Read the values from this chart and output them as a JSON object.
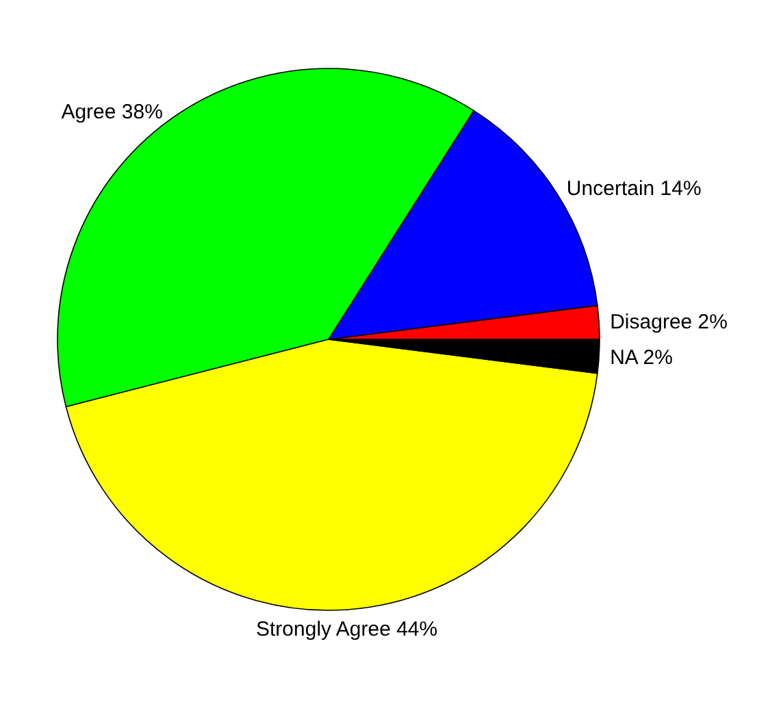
{
  "chart_data": {
    "type": "pie",
    "categories": [
      "Disagree",
      "Uncertain",
      "Agree",
      "Strongly Agree",
      "NA"
    ],
    "values": [
      2,
      14,
      38,
      44,
      2
    ],
    "value_labels": [
      "2%",
      "14%",
      "38%",
      "44%",
      "2%"
    ],
    "colors": [
      "#ff0000",
      "#0000ff",
      "#00ff00",
      "#ffff00",
      "#000000"
    ]
  }
}
